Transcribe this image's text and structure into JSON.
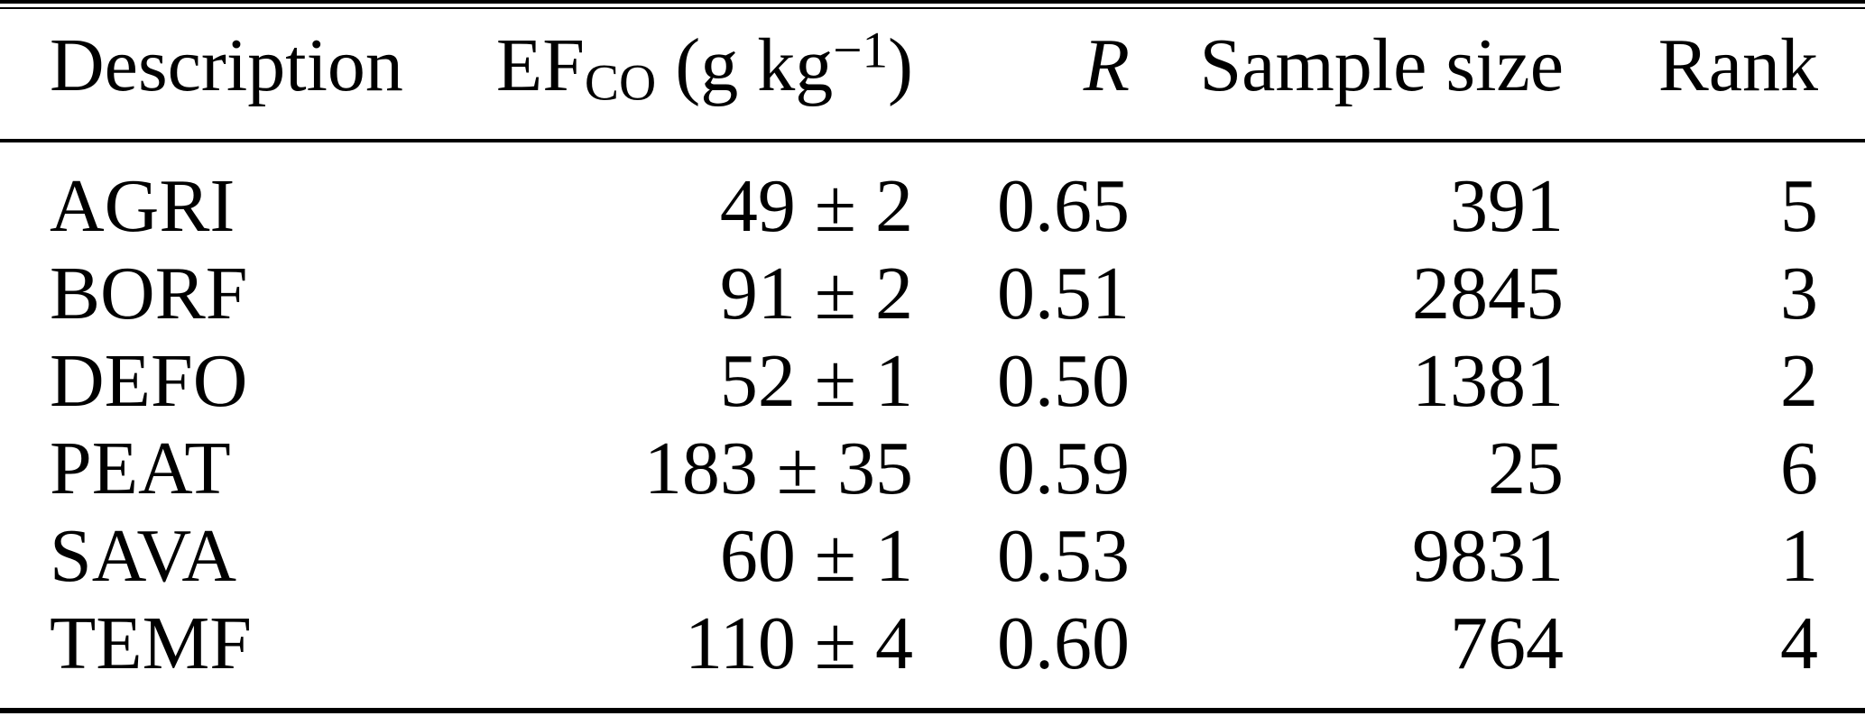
{
  "table": {
    "header": {
      "description": "Description",
      "ef": {
        "base": "EF",
        "sub": "CO",
        "unit_open": " (g kg",
        "sup": "−1",
        "unit_close": ")"
      },
      "r": "R",
      "sample_size": "Sample size",
      "rank": "Rank"
    },
    "rows": [
      {
        "description": "AGRI",
        "ef": "49 ± 2",
        "r": "0.65",
        "sample_size": "391",
        "rank": "5"
      },
      {
        "description": "BORF",
        "ef": "91 ± 2",
        "r": "0.51",
        "sample_size": "2845",
        "rank": "3"
      },
      {
        "description": "DEFO",
        "ef": "52 ± 1",
        "r": "0.50",
        "sample_size": "1381",
        "rank": "2"
      },
      {
        "description": "PEAT",
        "ef": "183 ± 35",
        "r": "0.59",
        "sample_size": "25",
        "rank": "6"
      },
      {
        "description": "SAVA",
        "ef": "60 ± 1",
        "r": "0.53",
        "sample_size": "9831",
        "rank": "1"
      },
      {
        "description": "TEMF",
        "ef": "110 ± 4",
        "r": "0.60",
        "sample_size": "764",
        "rank": "4"
      }
    ],
    "colors": {
      "text": "#000000",
      "background": "#ffffff",
      "rule": "#000000"
    }
  }
}
